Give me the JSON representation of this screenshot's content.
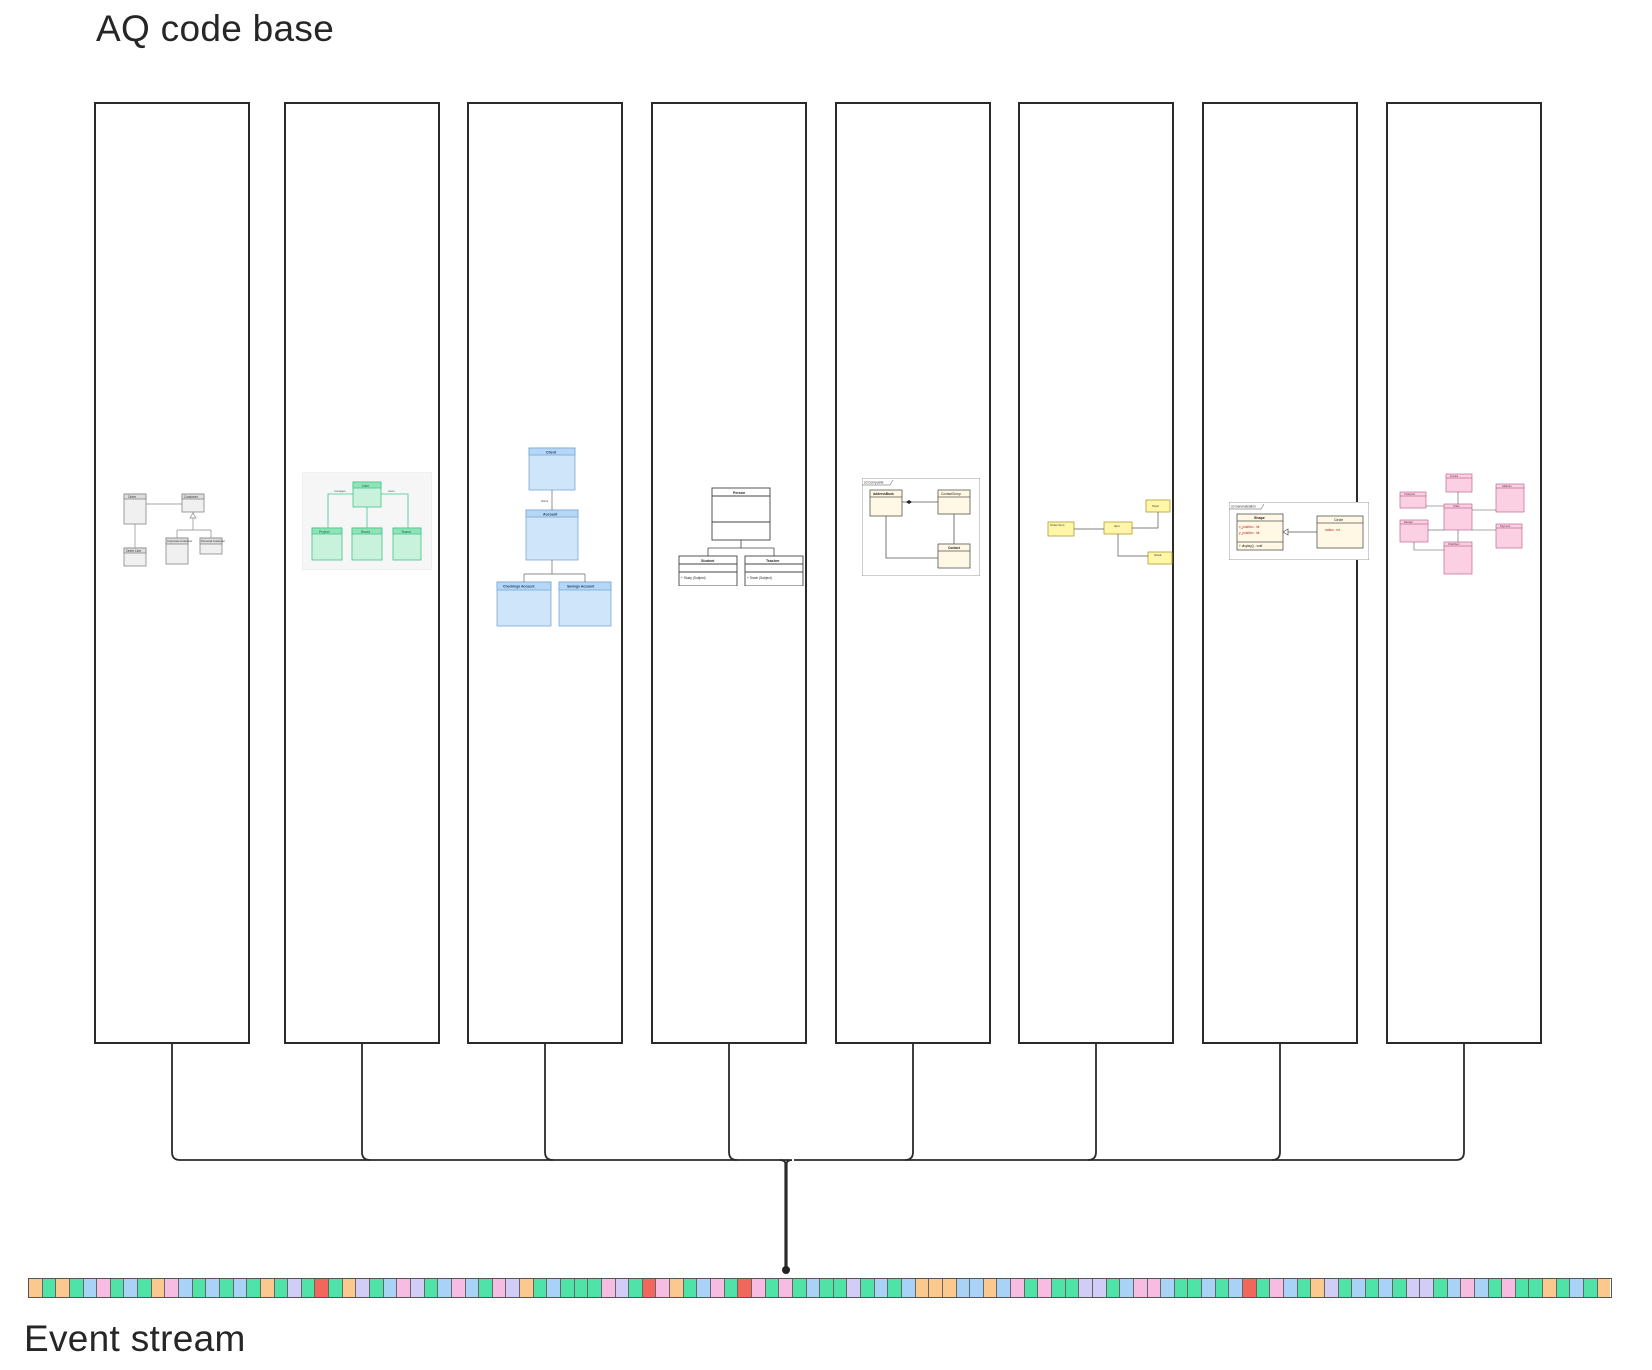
{
  "code_base": {
    "title": "AQ code base",
    "columns": [
      {
        "name": "uml-col-1",
        "theme": "gray"
      },
      {
        "name": "uml-col-2",
        "theme": "green"
      },
      {
        "name": "uml-col-3",
        "theme": "blue"
      },
      {
        "name": "uml-col-4",
        "theme": "white"
      },
      {
        "name": "uml-col-5",
        "theme": "cream"
      },
      {
        "name": "uml-col-6",
        "theme": "yellow"
      },
      {
        "name": "uml-col-7",
        "theme": "cream"
      },
      {
        "name": "uml-col-8",
        "theme": "pink"
      }
    ]
  },
  "event_stream": {
    "title": "Event stream",
    "palette": {
      "o": "#fbc98e",
      "g": "#4fe3a8",
      "b": "#a9d3f6",
      "p": "#f6bce1",
      "l": "#d2cdf6",
      "r": "#f1675c"
    },
    "cells": "ogogbpgbgopbgbgbgoglgrgolgbplgbpbgplogbgggplgrpogbpgrpgpgbgglgbgbooobbobpgpggllgbppbggbgbrgpbgolgbgbgllgbpbgpggogbgo"
  },
  "uml": {
    "c1": {
      "labels": [
        "Order",
        "Customer",
        "Order Line",
        "Corporate Customer",
        "Personal Customer"
      ]
    },
    "c2": {
      "labels": [
        "User",
        "Project",
        "Board",
        "Teams",
        "manages",
        "owns"
      ]
    },
    "c3": {
      "labels": [
        "Client",
        "Account",
        "Checkings Account",
        "Savings Account",
        "Owns"
      ]
    },
    "c4": {
      "labels": [
        "Person",
        "Student",
        "Teacher",
        "+ Study (Subject)",
        "+ Teach (Subject)"
      ]
    },
    "c5": {
      "labels": [
        "cd Composite",
        "AddressBook",
        "ContactGroup",
        "Contact"
      ]
    },
    "c6": {
      "labels": [
        "Topic",
        "Order Item",
        "Item",
        "Stock"
      ]
    },
    "c7": {
      "labels": [
        "cd Generalization",
        "Shape",
        "Circle",
        "x_position : int",
        "y_position : int",
        "radius : int",
        "+ display() : void"
      ]
    },
    "c8": {
      "labels": [
        "Invoice",
        "Order",
        "Address",
        "Customer",
        "Receipt",
        "OrderItem",
        "Payment"
      ]
    }
  }
}
